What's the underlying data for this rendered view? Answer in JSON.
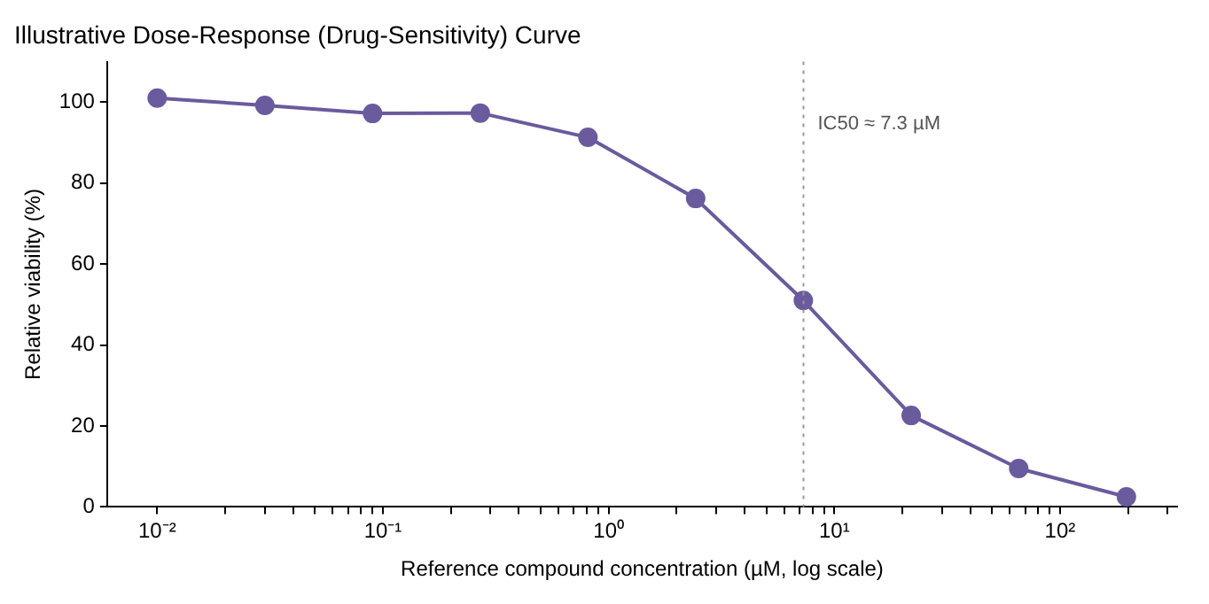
{
  "chart_data": {
    "type": "line",
    "title": "Illustrative Dose-Response (Drug-Sensitivity) Curve",
    "xlabel": "Reference compound concentration (µM, log scale)",
    "ylabel": "Relative viability (%)",
    "x": [
      0.01,
      0.03,
      0.09,
      0.27,
      0.81,
      2.43,
      7.29,
      21.9,
      65.6,
      196.8
    ],
    "series": [
      {
        "color": "#6a5a9e",
        "values": [
          101,
          99.2,
          97.2,
          97.3,
          91.3,
          76.2,
          51,
          22.6,
          9.5,
          2.5
        ]
      }
    ],
    "log": "x",
    "xlim": [
      0.006,
      330
    ],
    "ylim": [
      0,
      110
    ],
    "yticks": [
      0,
      20,
      40,
      60,
      80,
      100
    ],
    "xticks": [
      {
        "value": 0.01,
        "label": "10⁻²"
      },
      {
        "value": 0.02,
        "label": null
      },
      {
        "value": 0.03,
        "label": null
      },
      {
        "value": 0.04,
        "label": null
      },
      {
        "value": 0.05,
        "label": null
      },
      {
        "value": 0.06,
        "label": null
      },
      {
        "value": 0.07,
        "label": null
      },
      {
        "value": 0.08,
        "label": null
      },
      {
        "value": 0.09,
        "label": null
      },
      {
        "value": 0.1,
        "label": "10⁻¹"
      },
      {
        "value": 0.2,
        "label": null
      },
      {
        "value": 0.3,
        "label": null
      },
      {
        "value": 0.4,
        "label": null
      },
      {
        "value": 0.5,
        "label": null
      },
      {
        "value": 0.6,
        "label": null
      },
      {
        "value": 0.7,
        "label": null
      },
      {
        "value": 0.8,
        "label": null
      },
      {
        "value": 0.9,
        "label": null
      },
      {
        "value": 1,
        "label": "10⁰"
      },
      {
        "value": 2,
        "label": null
      },
      {
        "value": 3,
        "label": null
      },
      {
        "value": 4,
        "label": null
      },
      {
        "value": 5,
        "label": null
      },
      {
        "value": 6,
        "label": null
      },
      {
        "value": 7,
        "label": null
      },
      {
        "value": 8,
        "label": null
      },
      {
        "value": 9,
        "label": null
      },
      {
        "value": 10,
        "label": "10¹"
      },
      {
        "value": 20,
        "label": null
      },
      {
        "value": 30,
        "label": null
      },
      {
        "value": 40,
        "label": null
      },
      {
        "value": 50,
        "label": null
      },
      {
        "value": 60,
        "label": null
      },
      {
        "value": 70,
        "label": null
      },
      {
        "value": 80,
        "label": null
      },
      {
        "value": 90,
        "label": null
      },
      {
        "value": 100,
        "label": "10²"
      },
      {
        "value": 200,
        "label": null
      },
      {
        "value": 300,
        "label": null
      }
    ],
    "ref_lines": [
      {
        "axis": "x",
        "value": 7.3,
        "label": "IC50 ≈ 7.3 µM",
        "color": "#999999",
        "line_style": "dotted"
      }
    ],
    "grid": false,
    "legend": false,
    "marker": "circle",
    "line_style": "solid"
  }
}
